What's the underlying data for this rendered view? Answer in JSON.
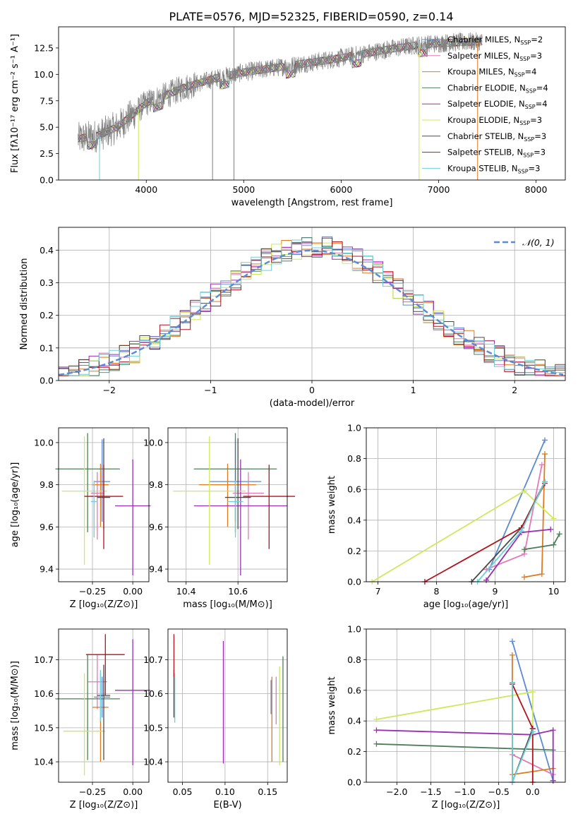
{
  "figure_title": "PLATE=0576, MJD=52325, FIBERID=0590, z=0.14",
  "colors": {
    "chabrier_miles": "#5b8ad6",
    "salpeter_miles": "#e07ab8",
    "kroupa_miles": "#e07a1f",
    "chabrier_elodie": "#4f7f5a",
    "salpeter_elodie": "#9a2fb5",
    "kroupa_elodie": "#cde85a",
    "chabrier_stelib": "#4a4a4a",
    "salpeter_stelib": "#b0141e",
    "kroupa_stelib": "#6fcfd8",
    "data_spectrum": "#808080",
    "normal_curve": "#5b8ad6"
  },
  "chart_data": [
    {
      "id": "spectrum",
      "type": "line",
      "xlabel": "wavelength [Angstrom, rest frame]",
      "ylabel": "Flux [fλ10⁻¹⁷ erg cm⁻² s⁻¹ A⁻¹]",
      "xlim": [
        3100,
        8300
      ],
      "ylim": [
        0,
        14.5
      ],
      "xticks": [
        "4000",
        "5000",
        "6000",
        "7000",
        "8000"
      ],
      "yticks": [
        "0.0",
        "2.5",
        "5.0",
        "7.5",
        "10.0",
        "12.5"
      ],
      "grid": false,
      "legend_position": "top-right",
      "legend": [
        "Chabrier MILES, N_SSP=2",
        "Salpeter MILES, N_SSP=3",
        "Kroupa MILES, N_SSP=4",
        "Chabrier ELODIE, N_SSP=4",
        "Salpeter ELODIE, N_SSP=4",
        "Kroupa ELODIE, N_SSP=3",
        "Chabrier STELIB, N_SSP=3",
        "Salpeter STELIB, N_SSP=3",
        "Kroupa STELIB, N_SSP=3"
      ],
      "continuum": [
        [
          3300,
          3.9
        ],
        [
          3500,
          4.2
        ],
        [
          3700,
          5.0
        ],
        [
          3900,
          6.5
        ],
        [
          4000,
          7.3
        ],
        [
          4200,
          8.0
        ],
        [
          4400,
          8.8
        ],
        [
          4700,
          9.6
        ],
        [
          5000,
          10.2
        ],
        [
          5300,
          10.6
        ],
        [
          5600,
          11.0
        ],
        [
          5900,
          11.4
        ],
        [
          6200,
          11.9
        ],
        [
          6500,
          12.4
        ],
        [
          6800,
          12.8
        ],
        [
          7100,
          13.0
        ],
        [
          7400,
          13.1
        ]
      ]
    },
    {
      "id": "residuals",
      "type": "line",
      "xlabel": "(data-model)/error",
      "ylabel": "Normed distribution",
      "xlim": [
        -2.5,
        2.5
      ],
      "ylim": [
        0,
        0.47
      ],
      "xticks": [
        "−2",
        "−1",
        "0",
        "1",
        "2"
      ],
      "yticks": [
        "0.0",
        "0.1",
        "0.2",
        "0.3",
        "0.4"
      ],
      "grid": true,
      "legend_position": "top-right",
      "legend": [
        "𝒩(0, 1)"
      ],
      "series_note": "step histograms of residuals for each of the 9 model fits plus standard normal"
    },
    {
      "id": "age_vs_Z",
      "type": "scatter",
      "xlabel": "Z [log₁₀(Z/Z⊙)]",
      "ylabel": "age  [log₁₀(age/yr)]",
      "xlim": [
        -0.46,
        0.1
      ],
      "ylim": [
        9.34,
        10.07
      ],
      "xticks": [
        "−0.25",
        "0.00"
      ],
      "yticks": [
        "9.4",
        "9.6",
        "9.8",
        "10.0"
      ],
      "grid": true,
      "points": [
        {
          "x": -0.19,
          "y": 9.815,
          "xerr": 0.05,
          "yerr": [
            0.19,
            0.2
          ]
        },
        {
          "x": -0.22,
          "y": 9.76,
          "xerr": 0.04,
          "yerr": [
            0.22,
            0.1
          ]
        },
        {
          "x": -0.2,
          "y": 9.8,
          "xerr": 0.05,
          "yerr": [
            0.2,
            0.1
          ]
        },
        {
          "x": -0.28,
          "y": 9.875,
          "xerr": 0.2,
          "yerr": [
            0.3,
            0.17
          ]
        },
        {
          "x": 0.0,
          "y": 9.7,
          "xerr": 0.11,
          "yerr": [
            0.33,
            0.22
          ]
        },
        {
          "x": -0.3,
          "y": 9.77,
          "xerr": 0.14,
          "yerr": [
            0.35,
            0.26
          ]
        },
        {
          "x": -0.18,
          "y": 9.74,
          "xerr": 0.04,
          "yerr": [
            0.15,
            0.28
          ]
        },
        {
          "x": -0.18,
          "y": 9.745,
          "xerr": 0.12,
          "yerr": [
            0.25,
            0.15
          ]
        },
        {
          "x": -0.24,
          "y": 9.72,
          "xerr": 0.02,
          "yerr": [
            0.17,
            0.1
          ]
        }
      ]
    },
    {
      "id": "age_vs_mass",
      "type": "scatter",
      "xlabel": "mass [log₁₀(M/M⊙)]",
      "xlim": [
        10.33,
        10.79
      ],
      "ylim": [
        9.34,
        10.07
      ],
      "xticks": [
        "10.4",
        "10.6"
      ],
      "yticks": [
        "9.4",
        "9.6",
        "9.8",
        "10.0"
      ],
      "grid": true,
      "points": [
        {
          "x": 10.59,
          "y": 9.815,
          "xerr": 0.1,
          "yerr": [
            0.19,
            0.2
          ]
        },
        {
          "x": 10.64,
          "y": 9.76,
          "xerr": 0.06,
          "yerr": [
            0.22,
            0.1
          ]
        },
        {
          "x": 10.56,
          "y": 9.8,
          "xerr": 0.11,
          "yerr": [
            0.2,
            0.1
          ]
        },
        {
          "x": 10.59,
          "y": 9.875,
          "xerr": 0.16,
          "yerr": [
            0.3,
            0.17
          ]
        },
        {
          "x": 10.61,
          "y": 9.7,
          "xerr": 0.18,
          "yerr": [
            0.33,
            0.22
          ]
        },
        {
          "x": 10.49,
          "y": 9.77,
          "xerr": 0.14,
          "yerr": [
            0.35,
            0.26
          ]
        },
        {
          "x": 10.6,
          "y": 9.74,
          "xerr": 0.05,
          "yerr": [
            0.15,
            0.28
          ]
        },
        {
          "x": 10.72,
          "y": 9.745,
          "xerr": 0.1,
          "yerr": [
            0.25,
            0.15
          ]
        },
        {
          "x": 10.59,
          "y": 9.72,
          "xerr": 0.03,
          "yerr": [
            0.17,
            0.1
          ]
        }
      ]
    },
    {
      "id": "weight_vs_age",
      "type": "line",
      "xlabel": "age  [log₁₀(age/yr)]",
      "ylabel": "mass weight",
      "xlim": [
        6.8,
        10.2
      ],
      "ylim": [
        0,
        1
      ],
      "xticks": [
        "7",
        "8",
        "9",
        "10"
      ],
      "yticks": [
        "0.0",
        "0.2",
        "0.4",
        "0.6",
        "0.8",
        "1.0"
      ],
      "grid": true,
      "series": [
        {
          "color_key": "chabrier_miles",
          "x": [
            8.9,
            9.85
          ],
          "y": [
            0.08,
            0.92
          ]
        },
        {
          "color_key": "salpeter_miles",
          "x": [
            8.85,
            9.5,
            9.8
          ],
          "y": [
            0.08,
            0.18,
            0.76
          ]
        },
        {
          "color_key": "kroupa_miles",
          "x": [
            9.5,
            9.8,
            9.85
          ],
          "y": [
            0.03,
            0.05,
            0.83
          ]
        },
        {
          "color_key": "chabrier_elodie",
          "x": [
            9.5,
            10.0,
            10.1
          ],
          "y": [
            0.21,
            0.24,
            0.31
          ]
        },
        {
          "color_key": "salpeter_elodie",
          "x": [
            8.85,
            9.45,
            9.95
          ],
          "y": [
            0.01,
            0.32,
            0.34
          ]
        },
        {
          "color_key": "kroupa_elodie",
          "x": [
            6.9,
            9.5,
            10.0
          ],
          "y": [
            0.0,
            0.59,
            0.41
          ]
        },
        {
          "color_key": "chabrier_stelib",
          "x": [
            8.6,
            9.45,
            9.85
          ],
          "y": [
            0.0,
            0.35,
            0.65
          ]
        },
        {
          "color_key": "salpeter_stelib",
          "x": [
            7.8,
            9.45,
            9.85
          ],
          "y": [
            0.0,
            0.35,
            0.64
          ]
        },
        {
          "color_key": "kroupa_stelib",
          "x": [
            8.7,
            9.45,
            9.85
          ],
          "y": [
            0.0,
            0.33,
            0.65
          ]
        }
      ]
    },
    {
      "id": "mass_vs_Z",
      "type": "scatter",
      "xlabel": "Z [log₁₀(Z/Z⊙)]",
      "ylabel": "mass [log₁₀(M/M⊙)]",
      "xlim": [
        -0.46,
        0.1
      ],
      "ylim": [
        10.34,
        10.79
      ],
      "xticks": [
        "−0.25",
        "0.00"
      ],
      "yticks": [
        "10.4",
        "10.5",
        "10.6",
        "10.7"
      ],
      "grid": true,
      "points": [
        {
          "x": -0.19,
          "y": 10.59,
          "xerr": 0.05,
          "yerr": [
            0.06,
            0.06
          ]
        },
        {
          "x": -0.22,
          "y": 10.635,
          "xerr": 0.06,
          "yerr": [
            0.08,
            0.08
          ]
        },
        {
          "x": -0.2,
          "y": 10.56,
          "xerr": 0.05,
          "yerr": [
            0.16,
            0.1
          ]
        },
        {
          "x": -0.28,
          "y": 10.585,
          "xerr": 0.2,
          "yerr": [
            0.18,
            0.13
          ]
        },
        {
          "x": 0.0,
          "y": 10.61,
          "xerr": 0.11,
          "yerr": [
            0.22,
            0.15
          ]
        },
        {
          "x": -0.3,
          "y": 10.49,
          "xerr": 0.13,
          "yerr": [
            0.13,
            0.17
          ]
        },
        {
          "x": -0.18,
          "y": 10.595,
          "xerr": 0.04,
          "yerr": [
            0.19,
            0.09
          ]
        },
        {
          "x": -0.17,
          "y": 10.715,
          "xerr": 0.12,
          "yerr": [
            0.12,
            0.06
          ]
        },
        {
          "x": -0.2,
          "y": 10.59,
          "xerr": 0.02,
          "yerr": [
            0.07,
            0.08
          ]
        }
      ]
    },
    {
      "id": "mass_vs_ebv",
      "type": "scatter",
      "xlabel": "E(B-V)",
      "xlim": [
        0.033,
        0.173
      ],
      "ylim": [
        10.34,
        10.79
      ],
      "xticks": [
        "0.05",
        "0.10",
        "0.15"
      ],
      "yticks": [
        "10.4",
        "10.5",
        "10.6",
        "10.7"
      ],
      "grid": true,
      "points": [
        {
          "x": 0.154,
          "y": 10.59,
          "yerr": [
            0.05,
            0.05
          ]
        },
        {
          "x": 0.16,
          "y": 10.6,
          "yerr": [
            0.09,
            0.05
          ]
        },
        {
          "x": 0.155,
          "y": 10.55,
          "yerr": [
            0.15,
            0.1
          ]
        },
        {
          "x": 0.168,
          "y": 10.6,
          "yerr": [
            0.2,
            0.11
          ]
        },
        {
          "x": 0.098,
          "y": 10.58,
          "yerr": [
            0.185,
            0.175
          ]
        },
        {
          "x": 0.164,
          "y": 10.5,
          "yerr": [
            0.11,
            0.18
          ]
        },
        {
          "x": 0.04,
          "y": 10.6,
          "yerr": [
            0.07,
            0.07
          ]
        },
        {
          "x": 0.04,
          "y": 10.7,
          "yerr": [
            0.05,
            0.075
          ]
        },
        {
          "x": 0.041,
          "y": 10.58,
          "yerr": [
            0.065,
            0.08
          ]
        }
      ]
    },
    {
      "id": "weight_vs_Z",
      "type": "line",
      "xlabel": "Z [log₁₀(Z/Z⊙)]",
      "ylabel": "mass weight",
      "xlim": [
        -2.45,
        0.48
      ],
      "ylim": [
        0,
        1
      ],
      "xticks": [
        "−2.0",
        "−1.5",
        "−1.0",
        "−0.5",
        "0.0"
      ],
      "yticks": [
        "0.0",
        "0.2",
        "0.4",
        "0.6",
        "0.8",
        "1.0"
      ],
      "grid": true,
      "series": [
        {
          "color_key": "chabrier_miles",
          "x": [
            -0.3,
            0.3
          ],
          "y": [
            0.92,
            0.01
          ]
        },
        {
          "color_key": "salpeter_miles",
          "x": [
            -0.3,
            0.3
          ],
          "y": [
            0.18,
            0.05
          ]
        },
        {
          "color_key": "kroupa_miles",
          "x": [
            -0.3,
            -0.3,
            0.3
          ],
          "y": [
            0.83,
            0.05,
            0.09
          ]
        },
        {
          "color_key": "chabrier_elodie",
          "x": [
            -2.3,
            0.3
          ],
          "y": [
            0.25,
            0.21
          ]
        },
        {
          "color_key": "salpeter_elodie",
          "x": [
            -2.3,
            0.0,
            0.3,
            0.3
          ],
          "y": [
            0.34,
            0.31,
            0.34,
            0.01
          ]
        },
        {
          "color_key": "kroupa_elodie",
          "x": [
            -2.3,
            0.0,
            0.0
          ],
          "y": [
            0.41,
            0.59,
            0.0
          ]
        },
        {
          "color_key": "chabrier_stelib",
          "x": [
            -0.3,
            -0.3,
            0.0
          ],
          "y": [
            0.65,
            0.0,
            0.35
          ]
        },
        {
          "color_key": "salpeter_stelib",
          "x": [
            -0.3,
            0.0,
            0.0
          ],
          "y": [
            0.64,
            0.35,
            0.0
          ]
        },
        {
          "color_key": "kroupa_stelib",
          "x": [
            -0.3,
            -0.3,
            0.0
          ],
          "y": [
            0.65,
            0.0,
            0.33
          ]
        }
      ]
    }
  ]
}
